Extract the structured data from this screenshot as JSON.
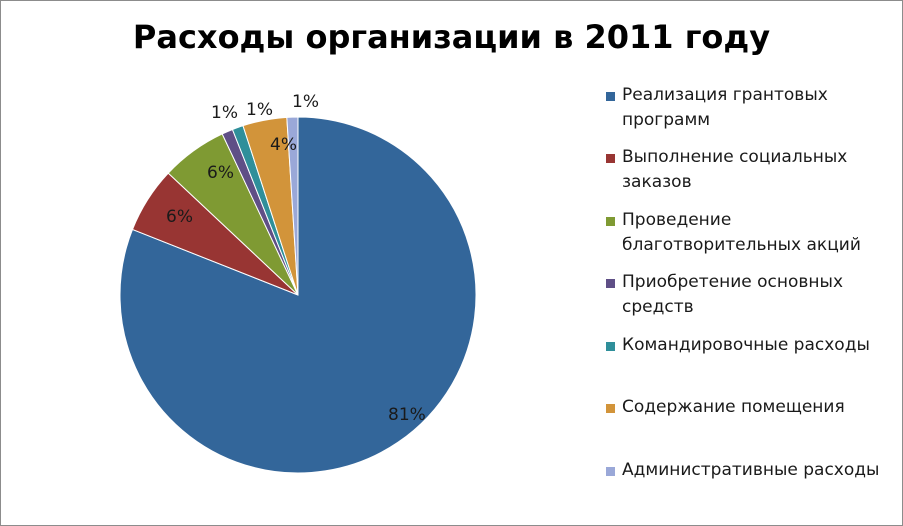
{
  "chart_data": {
    "type": "pie",
    "title": "Расходы организации в 2011 году",
    "legend_position": "right",
    "slices": [
      {
        "name": "Реализация грантовых программ",
        "value": 81,
        "label": "81%",
        "color": "#33669a"
      },
      {
        "name": "Выполнение социальных заказов",
        "value": 6,
        "label": "6%",
        "color": "#983533"
      },
      {
        "name": "Проведение благотворительных акций",
        "value": 6,
        "label": "6%",
        "color": "#7f9a33"
      },
      {
        "name": "Приобретение основных средств",
        "value": 1,
        "label": "1%",
        "color": "#5f4f86"
      },
      {
        "name": "Командировочные расходы",
        "value": 1,
        "label": "1%",
        "color": "#2f8f9a"
      },
      {
        "name": "Содержание помещения",
        "value": 4,
        "label": "4%",
        "color": "#d2943a"
      },
      {
        "name": "Административные расходы",
        "value": 1,
        "label": "1%",
        "color": "#9aa8d8"
      }
    ]
  }
}
